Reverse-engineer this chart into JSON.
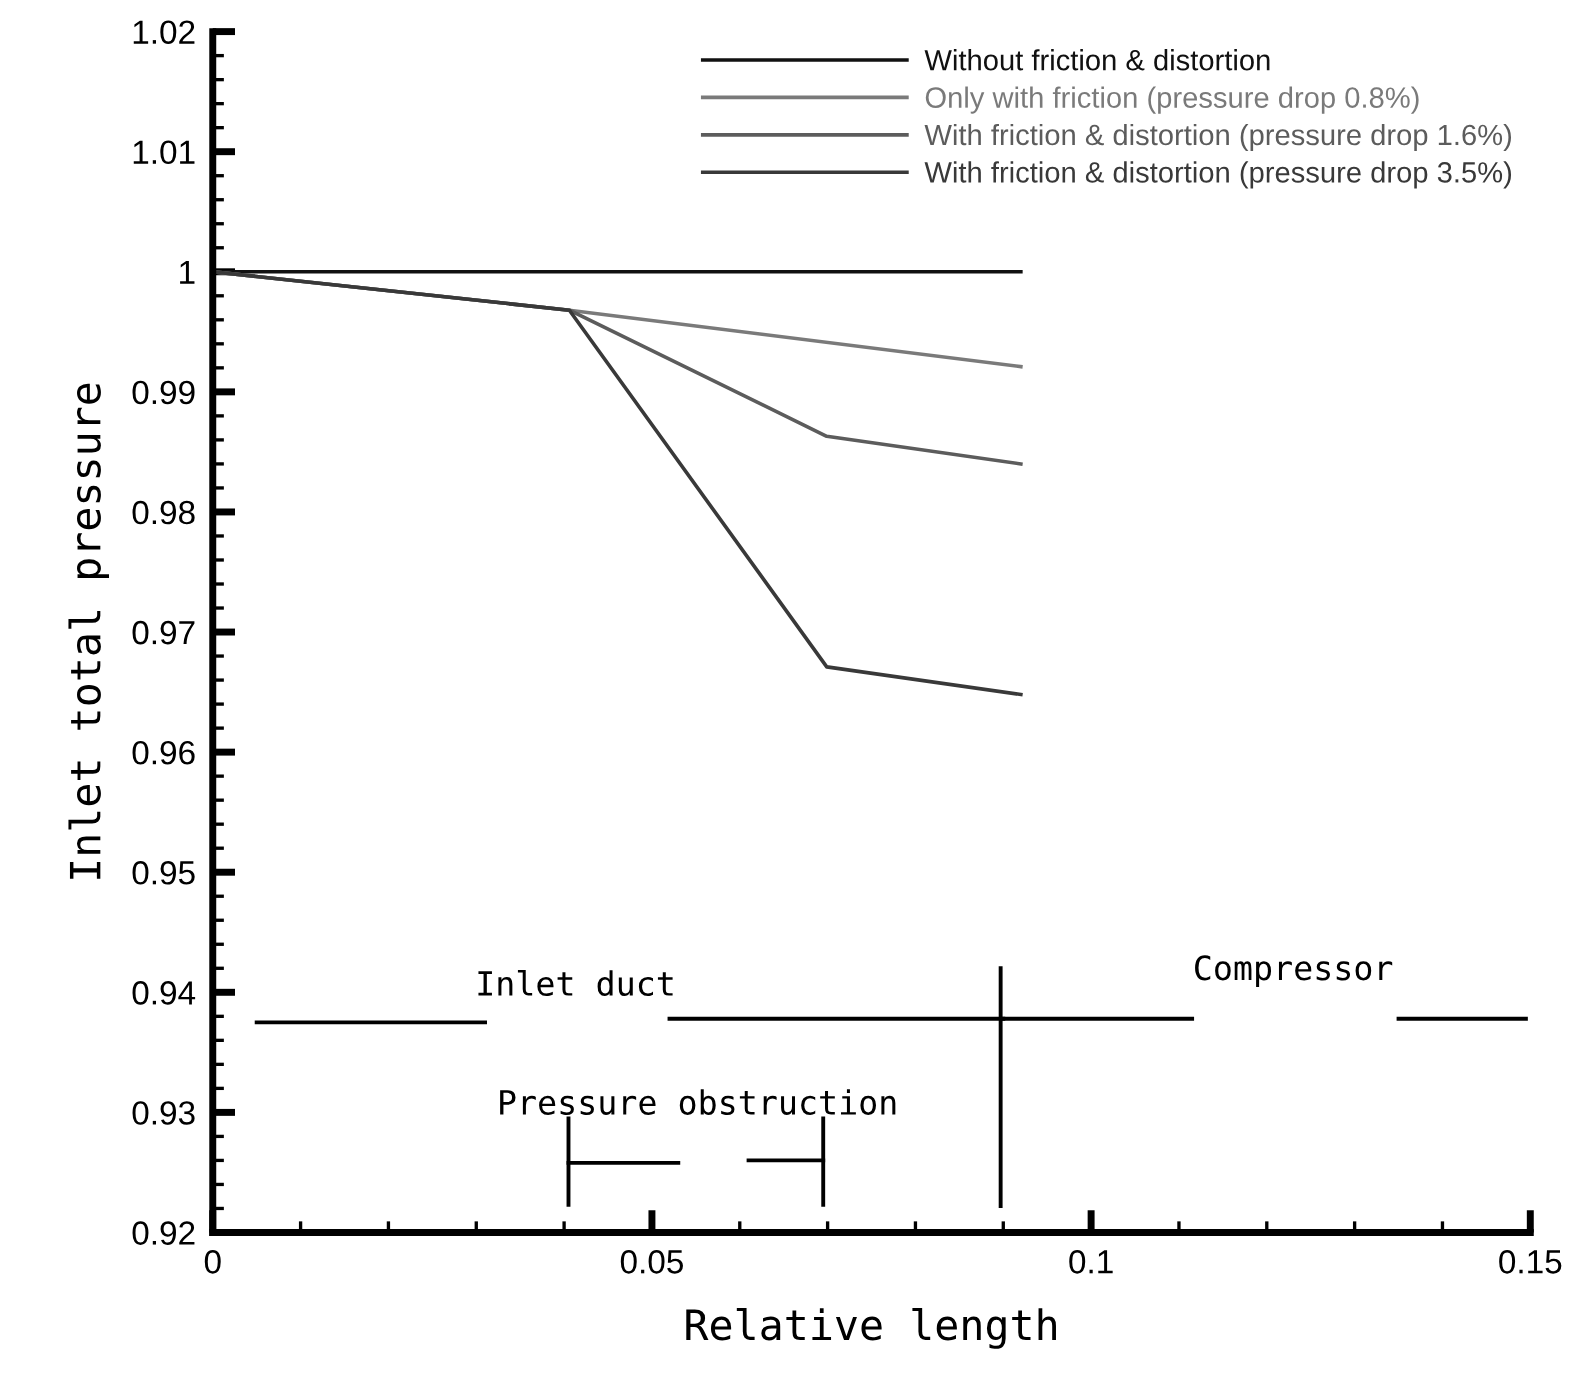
{
  "chart_data": {
    "type": "line",
    "xlabel": "Relative length",
    "ylabel": "Inlet total pressure",
    "xlim": [
      0,
      0.15
    ],
    "xticks": [
      0,
      0.05,
      0.1,
      0.15
    ],
    "ylim": [
      0.92,
      1.02
    ],
    "yticks": [
      0.92,
      0.93,
      0.94,
      0.95,
      0.96,
      0.97,
      0.98,
      0.99,
      1,
      1.01,
      1.02
    ],
    "grid": false,
    "legend": "top right",
    "marker": "none",
    "line_style": "solid",
    "series": [
      {
        "name": "Without friction & distortion",
        "color": "#111111",
        "x": [
          0,
          0.092
        ],
        "values": [
          1.0,
          1.0
        ]
      },
      {
        "name": "Only with friction (pressure drop 0.8%)",
        "color": "#7a7a7a",
        "x": [
          0,
          0.0406,
          0.092
        ],
        "values": [
          1.0,
          0.9968,
          0.9921
        ]
      },
      {
        "name": "With friction & distortion (pressure drop 1.6%)",
        "color": "#5c5c5c",
        "x": [
          0,
          0.0406,
          0.0699,
          0.092
        ],
        "values": [
          1.0,
          0.9968,
          0.9863,
          0.984
        ]
      },
      {
        "name": "With friction & distortion (pressure drop 3.5%)",
        "color": "#393939",
        "x": [
          0,
          0.0406,
          0.0699,
          0.092
        ],
        "values": [
          1.0,
          0.9968,
          0.9671,
          0.9648
        ]
      }
    ],
    "annotations": [
      "Inlet duct",
      "Compressor",
      "Pressure obstruction"
    ]
  }
}
